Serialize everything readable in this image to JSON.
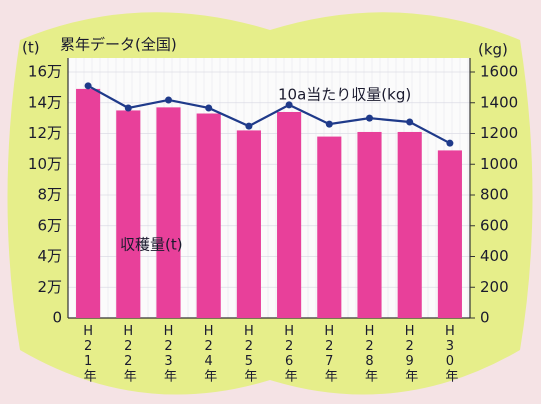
{
  "chart_data": {
    "type": "bar-line",
    "title": "累年データ(全国)",
    "ylabel": "(t)",
    "y2label": "(kg)",
    "categories": [
      "H21年",
      "H22年",
      "H23年",
      "H24年",
      "H25年",
      "H26年",
      "H27年",
      "H28年",
      "H29年",
      "H30年"
    ],
    "series": [
      {
        "name": "収穫量(t)",
        "type": "bar",
        "color": "#e8409a",
        "values": [
          149000,
          135000,
          137000,
          133000,
          122000,
          134000,
          118000,
          121000,
          121000,
          109000
        ]
      },
      {
        "name": "10a当たり収量(kg)",
        "type": "line",
        "axis": "y2",
        "color": "#1f3a8a",
        "values": [
          1510,
          1366,
          1418,
          1366,
          1248,
          1386,
          1261,
          1300,
          1275,
          1137
        ]
      }
    ],
    "ylim": [
      0,
      160000
    ],
    "yticks": [
      0,
      {
        "value": 20000,
        "label": "2万"
      },
      {
        "value": 40000,
        "label": "4万"
      },
      {
        "value": 60000,
        "label": "6万"
      },
      {
        "value": 80000,
        "label": "8万"
      },
      {
        "value": 100000,
        "label": "10万"
      },
      {
        "value": 120000,
        "label": "12万"
      },
      {
        "value": 140000,
        "label": "14万"
      },
      {
        "value": 160000,
        "label": "16万"
      }
    ],
    "y2lim": [
      0,
      1600
    ],
    "y2ticks": [
      0,
      200,
      400,
      600,
      800,
      1000,
      1200,
      1400,
      1600
    ],
    "grid": true
  }
}
